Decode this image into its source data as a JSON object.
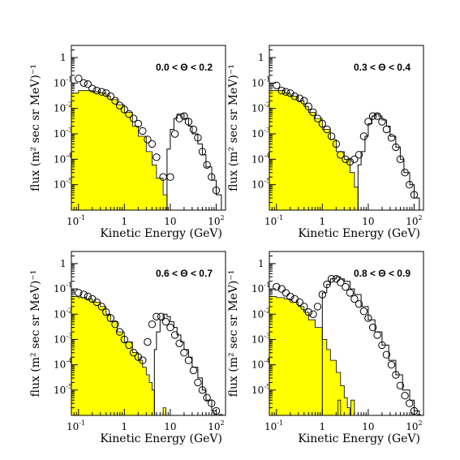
{
  "chart_data": [
    {
      "type": "histogram",
      "annotation": "0.0 < Θ < 0.2",
      "xlabel": "Kinetic Energy (GeV)",
      "ylabel": "flux (m² sec sr MeV)⁻¹",
      "x_scale": "log",
      "y_scale": "log",
      "xlim": [
        0.07,
        160
      ],
      "ylim": [
        1e-06,
        3
      ],
      "x_ticks": [
        "10",
        "1",
        "10",
        "10"
      ],
      "x_tick_exponents": [
        "-1",
        "",
        "",
        "2"
      ],
      "y_ticks": [
        "1",
        "10",
        "10",
        "10",
        "10",
        "10"
      ],
      "y_tick_exponents": [
        "",
        "-1",
        "-2",
        "-3",
        "-4",
        "-5"
      ],
      "series": [
        {
          "kind": "filled_histogram",
          "fill": "#ffff00",
          "edges": [
            0.07,
            0.1,
            0.15,
            0.2,
            0.3,
            0.4,
            0.5,
            0.7,
            1.0,
            1.5,
            2.0,
            3.0,
            4.0,
            5.0,
            7.0,
            8.5
          ],
          "values": [
            0.04,
            0.05,
            0.05,
            0.045,
            0.04,
            0.03,
            0.022,
            0.014,
            0.007,
            0.002,
            0.0008,
            0.0002,
            6e-05,
            1.8e-05,
            4e-06
          ]
        },
        {
          "kind": "open_histogram",
          "edges": [
            8.5,
            10,
            12,
            14,
            17,
            20,
            25,
            30,
            40,
            50,
            60,
            80,
            100,
            130
          ],
          "values": [
            0.00025,
            0.0015,
            0.004,
            0.006,
            0.006,
            0.004,
            0.002,
            0.001,
            0.0004,
            0.00015,
            5e-05,
            1.5e-05,
            4e-06
          ]
        },
        {
          "kind": "open_circles",
          "x": [
            0.1,
            0.13,
            0.16,
            0.2,
            0.25,
            0.32,
            0.4,
            0.5,
            0.63,
            0.79,
            1.0,
            1.26,
            1.58,
            2.0,
            2.5,
            3.2,
            4.0,
            5.0,
            7.0,
            10.0,
            12.6,
            15.8,
            20,
            25,
            32,
            40,
            50,
            63,
            79,
            100
          ],
          "y": [
            0.15,
            0.1,
            0.09,
            0.06,
            0.05,
            0.045,
            0.04,
            0.03,
            0.02,
            0.013,
            0.009,
            0.006,
            0.004,
            0.0025,
            0.0013,
            0.0006,
            0.0004,
            0.00012,
            2e-05,
            2e-05,
            0.001,
            0.004,
            0.005,
            0.003,
            0.0015,
            0.0007,
            0.0002,
            6e-05,
            2e-05,
            6e-06
          ]
        }
      ]
    },
    {
      "type": "histogram",
      "annotation": "0.3 < Θ < 0.4",
      "xlabel": "Kinetic Energy (GeV)",
      "ylabel": "flux (m² sec sr MeV)⁻¹",
      "x_scale": "log",
      "y_scale": "log",
      "xlim": [
        0.07,
        160
      ],
      "ylim": [
        1e-06,
        3
      ],
      "x_ticks": [
        "10",
        "1",
        "10",
        "10"
      ],
      "x_tick_exponents": [
        "-1",
        "",
        "",
        "2"
      ],
      "y_ticks": [
        "1",
        "10",
        "10",
        "10",
        "10",
        "10"
      ],
      "y_tick_exponents": [
        "",
        "-1",
        "-2",
        "-3",
        "-4",
        "-5"
      ],
      "series": [
        {
          "kind": "filled_histogram",
          "fill": "#ffff00",
          "edges": [
            0.07,
            0.1,
            0.15,
            0.2,
            0.3,
            0.4,
            0.5,
            0.7,
            1.0,
            1.5,
            2.0,
            3.0,
            4.0,
            5.0,
            6.0
          ],
          "values": [
            0.05,
            0.05,
            0.04,
            0.03,
            0.02,
            0.012,
            0.007,
            0.004,
            0.0015,
            0.0006,
            0.0002,
            0.0001,
            3e-05,
            8e-06
          ]
        },
        {
          "kind": "open_histogram",
          "edges": [
            6.0,
            7.0,
            8.5,
            10,
            12,
            14,
            17,
            20,
            25,
            30,
            40,
            50,
            60,
            80,
            100,
            130
          ],
          "values": [
            6e-05,
            0.0002,
            0.0008,
            0.0025,
            0.005,
            0.006,
            0.005,
            0.0035,
            0.002,
            0.0008,
            0.0003,
            0.0001,
            3e-05,
            1e-05,
            3e-06
          ]
        },
        {
          "kind": "open_circles",
          "x": [
            0.1,
            0.13,
            0.16,
            0.2,
            0.25,
            0.32,
            0.4,
            0.5,
            0.63,
            0.79,
            1.0,
            1.26,
            1.58,
            2.0,
            2.5,
            3.2,
            4.0,
            5.0,
            6.3,
            8.0,
            10.0,
            12.6,
            15.8,
            20,
            25,
            32,
            40,
            50,
            63,
            79,
            100
          ],
          "y": [
            0.08,
            0.05,
            0.045,
            0.04,
            0.03,
            0.025,
            0.02,
            0.012,
            0.007,
            0.004,
            0.0025,
            0.0015,
            0.0008,
            0.0004,
            0.00015,
            0.0001,
            8e-05,
            0.0001,
            0.00015,
            0.0008,
            0.003,
            0.005,
            0.005,
            0.003,
            0.0015,
            0.0007,
            0.0003,
            0.0001,
            3e-05,
            1e-05,
            4e-06
          ]
        }
      ]
    },
    {
      "type": "histogram",
      "annotation": "0.6 < Θ < 0.7",
      "xlabel": "Kinetic Energy (GeV)",
      "ylabel": "flux (m² sec sr MeV)⁻¹",
      "x_scale": "log",
      "y_scale": "log",
      "xlim": [
        0.07,
        160
      ],
      "ylim": [
        1e-06,
        3
      ],
      "x_ticks": [
        "10",
        "1",
        "10",
        "10"
      ],
      "x_tick_exponents": [
        "-1",
        "",
        "",
        "2"
      ],
      "y_ticks": [
        "1",
        "10",
        "10",
        "10",
        "10",
        "10"
      ],
      "y_tick_exponents": [
        "",
        "-1",
        "-2",
        "-3",
        "-4",
        "-5"
      ],
      "series": [
        {
          "kind": "filled_histogram",
          "fill": "#ffff00",
          "edges": [
            0.07,
            0.1,
            0.15,
            0.2,
            0.3,
            0.4,
            0.5,
            0.7,
            1.0,
            1.5,
            2.0,
            2.5,
            3.0,
            3.5,
            4.0,
            4.5
          ],
          "values": [
            0.05,
            0.045,
            0.04,
            0.03,
            0.02,
            0.01,
            0.005,
            0.002,
            0.0008,
            0.0003,
            0.00015,
            8e-05,
            4e-05,
            2e-05,
            1e-05
          ]
        },
        {
          "kind": "filled_histogram",
          "fill": "#ffff00",
          "edges": [
            7.0,
            8.0
          ],
          "values": [
            2e-06
          ]
        },
        {
          "kind": "open_histogram",
          "edges": [
            4.5,
            5.0,
            6.0,
            7.0,
            8.5,
            10,
            12,
            14,
            17,
            20,
            25,
            30,
            40,
            50,
            60,
            80,
            100,
            130
          ],
          "values": [
            0.0004,
            0.002,
            0.006,
            0.01,
            0.008,
            0.005,
            0.003,
            0.0015,
            0.0008,
            0.0004,
            0.0002,
            8e-05,
            3e-05,
            1e-05,
            4e-06,
            1.5e-06,
            8e-07
          ]
        },
        {
          "kind": "open_circles",
          "x": [
            0.1,
            0.13,
            0.16,
            0.2,
            0.25,
            0.32,
            0.4,
            0.5,
            0.63,
            0.79,
            1.0,
            1.26,
            1.58,
            2.0,
            2.5,
            3.2,
            4.0,
            5.0,
            6.3,
            8.0,
            10.0,
            12.6,
            15.8,
            20,
            25,
            32,
            40,
            50,
            63,
            79,
            100,
            126
          ],
          "y": [
            0.07,
            0.06,
            0.05,
            0.04,
            0.03,
            0.02,
            0.012,
            0.007,
            0.004,
            0.002,
            0.001,
            0.0006,
            0.0003,
            0.0002,
            0.00015,
            0.0008,
            0.004,
            0.008,
            0.008,
            0.005,
            0.003,
            0.0015,
            0.0007,
            0.0003,
            0.00015,
            6e-05,
            2e-05,
            1e-05,
            5e-06,
            3e-06,
            1.5e-06,
            8e-07
          ]
        }
      ]
    },
    {
      "type": "histogram",
      "annotation": "0.8 < Θ < 0.9",
      "xlabel": "Kinetic Energy (GeV)",
      "ylabel": "flux (m² sec sr MeV)⁻¹",
      "x_scale": "log",
      "y_scale": "log",
      "xlim": [
        0.07,
        160
      ],
      "ylim": [
        1e-06,
        3
      ],
      "x_ticks": [
        "10",
        "1",
        "10",
        "10"
      ],
      "x_tick_exponents": [
        "-1",
        "",
        "",
        "2"
      ],
      "y_ticks": [
        "1",
        "10",
        "10",
        "10",
        "10",
        "10"
      ],
      "y_tick_exponents": [
        "",
        "-1",
        "-2",
        "-3",
        "-4",
        "-5"
      ],
      "series": [
        {
          "kind": "filled_histogram",
          "fill": "#ffff00",
          "edges": [
            0.07,
            0.1,
            0.15,
            0.2,
            0.3,
            0.4,
            0.5,
            0.7,
            1.0,
            1.25,
            1.5,
            2.0,
            2.5,
            3.0,
            3.5,
            4.0
          ],
          "values": [
            0.05,
            0.045,
            0.04,
            0.03,
            0.02,
            0.012,
            0.006,
            0.003,
            0.001,
            0.0004,
            0.00015,
            5e-05,
            1.5e-05,
            5e-06,
            2e-06
          ]
        },
        {
          "kind": "filled_histogram",
          "fill": "#ffff00",
          "edges": [
            2.2,
            2.5
          ],
          "values": [
            4e-06
          ]
        },
        {
          "kind": "filled_histogram",
          "fill": "#ffff00",
          "edges": [
            4.2,
            5.0
          ],
          "values": [
            4e-06
          ]
        },
        {
          "kind": "open_histogram",
          "edges": [
            1.0,
            1.25,
            1.5,
            2.0,
            2.5,
            3.0,
            4.0,
            5.0,
            7.0,
            10,
            14,
            20,
            28,
            40,
            56,
            80,
            100,
            130
          ],
          "values": [
            0.07,
            0.15,
            0.25,
            0.3,
            0.25,
            0.2,
            0.1,
            0.06,
            0.02,
            0.006,
            0.002,
            0.0006,
            0.00015,
            4e-05,
            1e-05,
            4e-06,
            1.5e-06
          ]
        },
        {
          "kind": "open_circles",
          "x": [
            0.1,
            0.13,
            0.16,
            0.2,
            0.25,
            0.32,
            0.4,
            0.5,
            0.63,
            0.79,
            1.0,
            1.26,
            1.58,
            2.0,
            2.5,
            3.2,
            4.0,
            5.0,
            6.3,
            8.0,
            10.0,
            12.6,
            15.8,
            20,
            25,
            32,
            40,
            50,
            63,
            79,
            100,
            126
          ],
          "y": [
            0.12,
            0.1,
            0.07,
            0.05,
            0.04,
            0.03,
            0.02,
            0.012,
            0.01,
            0.02,
            0.06,
            0.15,
            0.25,
            0.25,
            0.18,
            0.12,
            0.07,
            0.04,
            0.025,
            0.013,
            0.007,
            0.003,
            0.0015,
            0.0006,
            0.00025,
            0.0001,
            4e-05,
            1.5e-05,
            6e-06,
            3e-06,
            1.5e-06,
            8e-07
          ]
        }
      ]
    }
  ]
}
